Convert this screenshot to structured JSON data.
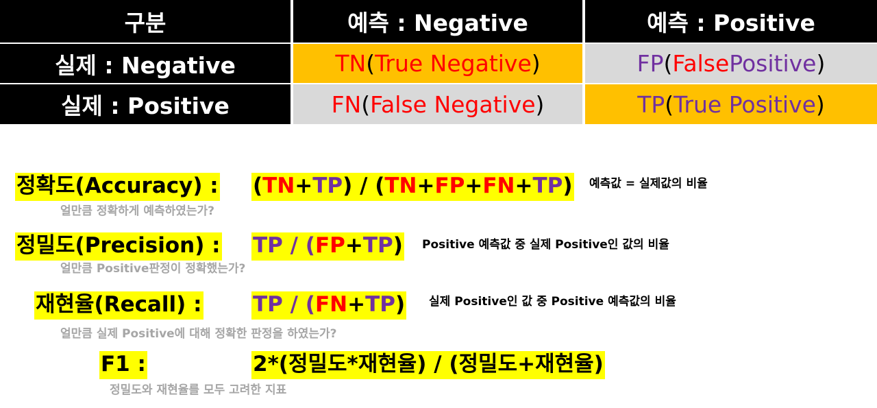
{
  "matrix": {
    "corner": "구분",
    "col_neg": "예측 : Negative",
    "col_pos": "예측 : Positive",
    "row_neg": "실제 : Negative",
    "row_pos": "실제 : Positive",
    "tn": {
      "abbr": "TN",
      "open": "(",
      "full": "True Negative",
      "close": ")"
    },
    "fp": {
      "abbr": "FP",
      "open": "(",
      "full": "False Positive",
      "close": ")"
    },
    "fn": {
      "abbr": "FN",
      "open": "(",
      "full": "False Negative",
      "close": ")"
    },
    "tp": {
      "abbr": "TP",
      "open": "(",
      "full": "True Positive",
      "close": ")"
    }
  },
  "colors": {
    "header_bg": "#000000",
    "highlight_orange": "#ffc000",
    "highlight_gray": "#d9d9d9",
    "highlight_yellow": "#ffff00",
    "red": "#ff0000",
    "purple": "#7030a0",
    "note_gray": "#a6a6a6"
  },
  "metrics": {
    "accuracy": {
      "label": "정확도(Accuracy) :",
      "formula_tokens": [
        {
          "t": "(",
          "c": "black"
        },
        {
          "t": "TN",
          "c": "red"
        },
        {
          "t": "+",
          "c": "black"
        },
        {
          "t": "TP",
          "c": "purple"
        },
        {
          "t": ") / (",
          "c": "black"
        },
        {
          "t": "TN",
          "c": "red"
        },
        {
          "t": "+",
          "c": "black"
        },
        {
          "t": "FP",
          "c": "red"
        },
        {
          "t": "+",
          "c": "black"
        },
        {
          "t": "FN",
          "c": "red"
        },
        {
          "t": "+",
          "c": "black"
        },
        {
          "t": "TP",
          "c": "purple"
        },
        {
          "t": ")",
          "c": "black"
        }
      ],
      "note": "예측값 = 실제값의 비율",
      "question": "얼만큼 정확하게 예측하였는가?"
    },
    "precision": {
      "label": "정밀도(Precision) :",
      "formula_tokens": [
        {
          "t": "TP",
          "c": "purple"
        },
        {
          "t": " / (",
          "c": "purple"
        },
        {
          "t": "FP",
          "c": "red"
        },
        {
          "t": "+",
          "c": "black"
        },
        {
          "t": "TP",
          "c": "purple"
        },
        {
          "t": ")",
          "c": "black"
        }
      ],
      "note": "Positive 예측값 중 실제 Positive인 값의 비율",
      "question": "얼만큼 Positive판정이 정확했는가?"
    },
    "recall": {
      "label": "재현율(Recall) :",
      "formula_tokens": [
        {
          "t": "TP",
          "c": "purple"
        },
        {
          "t": " / (",
          "c": "purple"
        },
        {
          "t": "FN",
          "c": "red"
        },
        {
          "t": "+",
          "c": "black"
        },
        {
          "t": "TP",
          "c": "purple"
        },
        {
          "t": ")",
          "c": "black"
        }
      ],
      "note": "실제 Positive인 값 중 Positive 예측값의 비율",
      "question": "얼만큼 실제 Positive에 대해 정확한 판정을 하였는가?"
    },
    "f1": {
      "label": "F1 :",
      "formula_tokens": [
        {
          "t": "2*(정밀도*재현율) / (정밀도+재현율)",
          "c": "black"
        }
      ],
      "question": "정밀도와 재현율를 모두 고려한 지표"
    }
  }
}
